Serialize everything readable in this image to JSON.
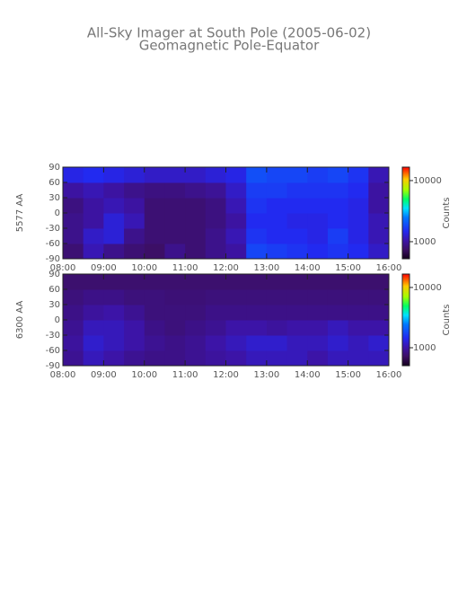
{
  "chart_data": [
    {
      "type": "heatmap",
      "title": "All-Sky Imager at South Pole (2005-06-02)",
      "subtitle": "Geomagnetic Pole-Equator",
      "ylabel": "5577 AA",
      "x": [
        8.25,
        8.75,
        9.25,
        9.75,
        10.25,
        10.75,
        11.25,
        11.75,
        12.25,
        12.75,
        13.25,
        13.75,
        14.25,
        14.75,
        15.25,
        15.75
      ],
      "y": [
        -75,
        -45,
        -15,
        15,
        45,
        75
      ],
      "values": [
        [
          800,
          1100,
          900,
          800,
          750,
          900,
          800,
          900,
          1000,
          1800,
          1700,
          1600,
          1500,
          1600,
          1500,
          1200
        ],
        [
          900,
          1200,
          1300,
          900,
          800,
          800,
          800,
          900,
          1100,
          1600,
          1500,
          1500,
          1400,
          1700,
          1400,
          1100
        ],
        [
          900,
          1000,
          1300,
          1100,
          800,
          800,
          800,
          850,
          1000,
          1500,
          1500,
          1400,
          1400,
          1500,
          1400,
          1100
        ],
        [
          850,
          1000,
          1100,
          1000,
          800,
          800,
          800,
          850,
          1100,
          1600,
          1500,
          1500,
          1500,
          1500,
          1400,
          1000
        ],
        [
          1000,
          1100,
          1000,
          900,
          850,
          850,
          900,
          950,
          1200,
          1700,
          1700,
          1600,
          1600,
          1600,
          1500,
          1000
        ],
        [
          1400,
          1500,
          1400,
          1300,
          1200,
          1200,
          1200,
          1300,
          1400,
          1900,
          1800,
          1800,
          1700,
          1800,
          1600,
          1100
        ]
      ],
      "xlim": [
        8,
        16
      ],
      "xticks": [
        {
          "value": 8,
          "label": "08:00"
        },
        {
          "value": 9,
          "label": "09:00"
        },
        {
          "value": 10,
          "label": "10:00"
        },
        {
          "value": 11,
          "label": "11:00"
        },
        {
          "value": 12,
          "label": "12:00"
        },
        {
          "value": 13,
          "label": "13:00"
        },
        {
          "value": 14,
          "label": "14:00"
        },
        {
          "value": 15,
          "label": "15:00"
        },
        {
          "value": 16,
          "label": "16:00"
        }
      ],
      "ylim": [
        -90,
        90
      ],
      "yticks": [
        -90,
        -60,
        -30,
        0,
        30,
        60,
        90
      ],
      "colorbar_label": "Counts",
      "clim": [
        525,
        16600
      ],
      "cticks": [
        1000,
        10000
      ],
      "color_log": true
    },
    {
      "type": "heatmap",
      "ylabel": "6300 AA",
      "x": [
        8.25,
        8.75,
        9.25,
        9.75,
        10.25,
        10.75,
        11.25,
        11.75,
        12.25,
        12.75,
        13.25,
        13.75,
        14.25,
        14.75,
        15.25,
        15.75
      ],
      "y": [
        -75,
        -45,
        -15,
        15,
        45,
        75
      ],
      "values": [
        [
          900,
          1100,
          1000,
          900,
          850,
          850,
          900,
          950,
          1000,
          1100,
          1100,
          1100,
          1000,
          1100,
          1100,
          1100
        ],
        [
          950,
          1200,
          1100,
          1000,
          900,
          850,
          900,
          1000,
          1100,
          1200,
          1200,
          1100,
          1100,
          1200,
          1100,
          1200
        ],
        [
          900,
          1100,
          1100,
          1000,
          850,
          800,
          850,
          900,
          1000,
          1000,
          950,
          1000,
          1000,
          1100,
          1000,
          1000
        ],
        [
          850,
          950,
          1000,
          900,
          800,
          800,
          800,
          850,
          850,
          850,
          850,
          850,
          850,
          850,
          850,
          850
        ],
        [
          800,
          850,
          850,
          800,
          800,
          780,
          780,
          800,
          800,
          800,
          800,
          800,
          800,
          800,
          800,
          800
        ],
        [
          750,
          750,
          750,
          750,
          750,
          750,
          750,
          750,
          750,
          750,
          750,
          750,
          750,
          750,
          750,
          750
        ]
      ],
      "xlim": [
        8,
        16
      ],
      "xticks": [
        {
          "value": 8,
          "label": "08:00"
        },
        {
          "value": 9,
          "label": "09:00"
        },
        {
          "value": 10,
          "label": "10:00"
        },
        {
          "value": 11,
          "label": "11:00"
        },
        {
          "value": 12,
          "label": "12:00"
        },
        {
          "value": 13,
          "label": "13:00"
        },
        {
          "value": 14,
          "label": "14:00"
        },
        {
          "value": 15,
          "label": "15:00"
        },
        {
          "value": 16,
          "label": "16:00"
        }
      ],
      "ylim": [
        -90,
        90
      ],
      "yticks": [
        -90,
        -60,
        -30,
        0,
        30,
        60,
        90
      ],
      "colorbar_label": "Counts",
      "clim": [
        503,
        16700
      ],
      "cticks": [
        1000,
        10000
      ],
      "color_log": true
    }
  ]
}
